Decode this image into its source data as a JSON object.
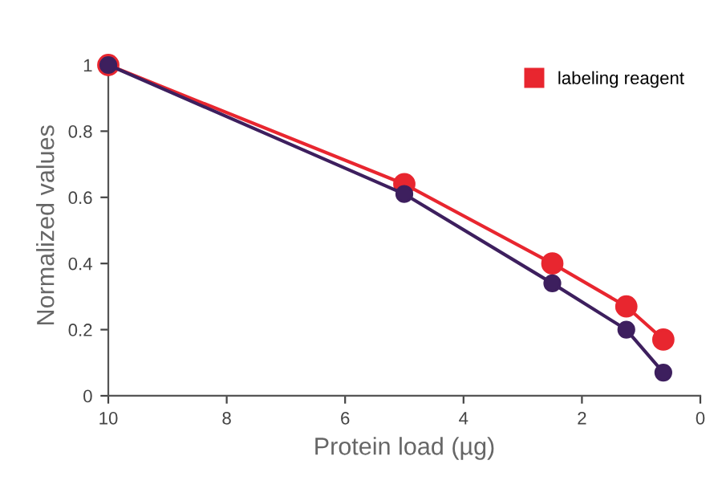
{
  "chart_data": {
    "type": "line",
    "xlabel": "Protein load (µg)",
    "ylabel": "Normalized values",
    "series": [
      {
        "name": "labeling reagent",
        "color": "#e8262f",
        "x": [
          10,
          5,
          2.5,
          1.25,
          0.625
        ],
        "values": [
          1,
          0.64,
          0.4,
          0.27,
          0.17
        ]
      },
      {
        "color": "#3d1f5e",
        "x": [
          10,
          5,
          2.5,
          1.25,
          0.625
        ],
        "values": [
          1,
          0.61,
          0.34,
          0.2,
          0.07
        ]
      }
    ],
    "xlim": [
      10,
      0
    ],
    "xticks": [
      10,
      8,
      6,
      4,
      2,
      0
    ],
    "ylim": [
      0,
      1.03
    ],
    "yticks": [
      0,
      {
        "value": 0.2,
        "label": "0.2"
      },
      {
        "value": 0.4,
        "label": "0.4"
      },
      {
        "value": 0.6,
        "label": "0.6"
      },
      {
        "value": 0.8,
        "label": "0.8"
      },
      1
    ],
    "grid": false,
    "legend": "top right",
    "marker": "circle",
    "line_style": "solid"
  }
}
